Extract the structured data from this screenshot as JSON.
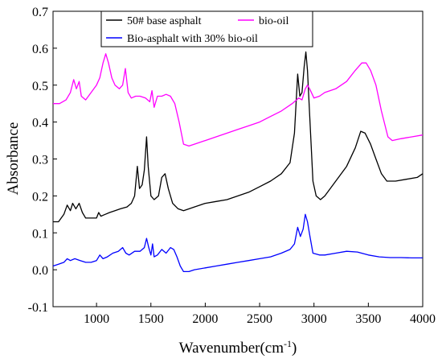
{
  "chart_data": {
    "type": "line",
    "xlabel": "Wavenumber(cm",
    "xlabel_sup": "-1",
    "xlabel_end": ")",
    "ylabel": "Absorbance",
    "xlim": [
      600,
      4000
    ],
    "ylim": [
      -0.1,
      0.7
    ],
    "xticks": [
      1000,
      1500,
      2000,
      2500,
      3000,
      3500,
      4000
    ],
    "xtick_labels": [
      "1000",
      "1500",
      "2000",
      "2500",
      "3000",
      "3500",
      "4000"
    ],
    "yticks": [
      -0.1,
      0.0,
      0.1,
      0.2,
      0.3,
      0.4,
      0.5,
      0.6,
      0.7
    ],
    "ytick_labels": [
      "-0.1",
      "0.0",
      "0.1",
      "0.2",
      "0.3",
      "0.4",
      "0.5",
      "0.6",
      "0.7"
    ],
    "grid": false,
    "legend_position": "top-center",
    "series": [
      {
        "name": "50# base asphalt",
        "color": "#000000",
        "points": [
          [
            600,
            0.13
          ],
          [
            650,
            0.13
          ],
          [
            700,
            0.15
          ],
          [
            730,
            0.175
          ],
          [
            760,
            0.16
          ],
          [
            780,
            0.18
          ],
          [
            810,
            0.165
          ],
          [
            840,
            0.18
          ],
          [
            870,
            0.155
          ],
          [
            900,
            0.14
          ],
          [
            950,
            0.14
          ],
          [
            1000,
            0.14
          ],
          [
            1020,
            0.155
          ],
          [
            1040,
            0.145
          ],
          [
            1080,
            0.15
          ],
          [
            1120,
            0.155
          ],
          [
            1170,
            0.16
          ],
          [
            1220,
            0.165
          ],
          [
            1280,
            0.17
          ],
          [
            1320,
            0.18
          ],
          [
            1350,
            0.2
          ],
          [
            1375,
            0.28
          ],
          [
            1395,
            0.22
          ],
          [
            1420,
            0.23
          ],
          [
            1440,
            0.27
          ],
          [
            1460,
            0.36
          ],
          [
            1475,
            0.28
          ],
          [
            1500,
            0.2
          ],
          [
            1530,
            0.19
          ],
          [
            1570,
            0.2
          ],
          [
            1600,
            0.25
          ],
          [
            1630,
            0.26
          ],
          [
            1660,
            0.22
          ],
          [
            1700,
            0.18
          ],
          [
            1750,
            0.165
          ],
          [
            1800,
            0.16
          ],
          [
            1900,
            0.17
          ],
          [
            2000,
            0.18
          ],
          [
            2100,
            0.185
          ],
          [
            2200,
            0.19
          ],
          [
            2300,
            0.2
          ],
          [
            2400,
            0.21
          ],
          [
            2500,
            0.225
          ],
          [
            2600,
            0.24
          ],
          [
            2700,
            0.26
          ],
          [
            2780,
            0.29
          ],
          [
            2820,
            0.37
          ],
          [
            2850,
            0.53
          ],
          [
            2870,
            0.47
          ],
          [
            2890,
            0.48
          ],
          [
            2910,
            0.55
          ],
          [
            2925,
            0.59
          ],
          [
            2940,
            0.54
          ],
          [
            2960,
            0.42
          ],
          [
            2990,
            0.24
          ],
          [
            3020,
            0.2
          ],
          [
            3060,
            0.19
          ],
          [
            3100,
            0.2
          ],
          [
            3200,
            0.24
          ],
          [
            3300,
            0.28
          ],
          [
            3380,
            0.33
          ],
          [
            3430,
            0.375
          ],
          [
            3470,
            0.37
          ],
          [
            3520,
            0.34
          ],
          [
            3570,
            0.3
          ],
          [
            3620,
            0.26
          ],
          [
            3670,
            0.24
          ],
          [
            3750,
            0.24
          ],
          [
            3850,
            0.245
          ],
          [
            3950,
            0.25
          ],
          [
            4000,
            0.26
          ]
        ]
      },
      {
        "name": "bio-oil",
        "color": "#ff00ff",
        "points": [
          [
            600,
            0.45
          ],
          [
            660,
            0.45
          ],
          [
            720,
            0.46
          ],
          [
            760,
            0.48
          ],
          [
            790,
            0.515
          ],
          [
            815,
            0.49
          ],
          [
            840,
            0.51
          ],
          [
            860,
            0.47
          ],
          [
            900,
            0.46
          ],
          [
            950,
            0.48
          ],
          [
            1000,
            0.5
          ],
          [
            1030,
            0.52
          ],
          [
            1060,
            0.56
          ],
          [
            1085,
            0.585
          ],
          [
            1110,
            0.56
          ],
          [
            1140,
            0.52
          ],
          [
            1170,
            0.5
          ],
          [
            1210,
            0.49
          ],
          [
            1240,
            0.5
          ],
          [
            1265,
            0.545
          ],
          [
            1290,
            0.48
          ],
          [
            1320,
            0.465
          ],
          [
            1360,
            0.47
          ],
          [
            1400,
            0.47
          ],
          [
            1450,
            0.465
          ],
          [
            1490,
            0.455
          ],
          [
            1510,
            0.485
          ],
          [
            1530,
            0.44
          ],
          [
            1560,
            0.47
          ],
          [
            1600,
            0.47
          ],
          [
            1640,
            0.475
          ],
          [
            1680,
            0.47
          ],
          [
            1720,
            0.45
          ],
          [
            1760,
            0.4
          ],
          [
            1800,
            0.34
          ],
          [
            1850,
            0.335
          ],
          [
            1900,
            0.34
          ],
          [
            2000,
            0.35
          ],
          [
            2100,
            0.36
          ],
          [
            2200,
            0.37
          ],
          [
            2300,
            0.38
          ],
          [
            2400,
            0.39
          ],
          [
            2500,
            0.4
          ],
          [
            2600,
            0.415
          ],
          [
            2700,
            0.43
          ],
          [
            2800,
            0.45
          ],
          [
            2860,
            0.465
          ],
          [
            2890,
            0.46
          ],
          [
            2920,
            0.49
          ],
          [
            2940,
            0.5
          ],
          [
            2960,
            0.49
          ],
          [
            3000,
            0.465
          ],
          [
            3050,
            0.47
          ],
          [
            3100,
            0.48
          ],
          [
            3200,
            0.49
          ],
          [
            3300,
            0.51
          ],
          [
            3380,
            0.54
          ],
          [
            3440,
            0.56
          ],
          [
            3480,
            0.56
          ],
          [
            3520,
            0.54
          ],
          [
            3570,
            0.5
          ],
          [
            3620,
            0.43
          ],
          [
            3680,
            0.36
          ],
          [
            3720,
            0.35
          ],
          [
            3800,
            0.355
          ],
          [
            3900,
            0.36
          ],
          [
            4000,
            0.365
          ]
        ]
      },
      {
        "name": "Bio-asphalt with 30% bio-oil",
        "color": "#0000ff",
        "points": [
          [
            600,
            0.01
          ],
          [
            650,
            0.015
          ],
          [
            700,
            0.02
          ],
          [
            730,
            0.03
          ],
          [
            760,
            0.025
          ],
          [
            800,
            0.03
          ],
          [
            850,
            0.025
          ],
          [
            900,
            0.02
          ],
          [
            950,
            0.02
          ],
          [
            1000,
            0.025
          ],
          [
            1030,
            0.04
          ],
          [
            1060,
            0.03
          ],
          [
            1100,
            0.035
          ],
          [
            1150,
            0.045
          ],
          [
            1200,
            0.05
          ],
          [
            1240,
            0.06
          ],
          [
            1270,
            0.045
          ],
          [
            1300,
            0.04
          ],
          [
            1350,
            0.05
          ],
          [
            1400,
            0.05
          ],
          [
            1440,
            0.06
          ],
          [
            1460,
            0.085
          ],
          [
            1480,
            0.06
          ],
          [
            1500,
            0.04
          ],
          [
            1515,
            0.07
          ],
          [
            1530,
            0.035
          ],
          [
            1560,
            0.04
          ],
          [
            1600,
            0.055
          ],
          [
            1640,
            0.045
          ],
          [
            1680,
            0.06
          ],
          [
            1710,
            0.055
          ],
          [
            1740,
            0.035
          ],
          [
            1770,
            0.01
          ],
          [
            1800,
            -0.005
          ],
          [
            1850,
            -0.005
          ],
          [
            1900,
            0.0
          ],
          [
            2000,
            0.005
          ],
          [
            2100,
            0.01
          ],
          [
            2200,
            0.015
          ],
          [
            2300,
            0.02
          ],
          [
            2400,
            0.025
          ],
          [
            2500,
            0.03
          ],
          [
            2600,
            0.035
          ],
          [
            2700,
            0.045
          ],
          [
            2780,
            0.055
          ],
          [
            2820,
            0.07
          ],
          [
            2850,
            0.115
          ],
          [
            2875,
            0.09
          ],
          [
            2900,
            0.11
          ],
          [
            2920,
            0.15
          ],
          [
            2940,
            0.13
          ],
          [
            2960,
            0.095
          ],
          [
            2990,
            0.045
          ],
          [
            3050,
            0.04
          ],
          [
            3100,
            0.04
          ],
          [
            3200,
            0.045
          ],
          [
            3300,
            0.05
          ],
          [
            3400,
            0.048
          ],
          [
            3500,
            0.04
          ],
          [
            3600,
            0.035
          ],
          [
            3700,
            0.033
          ],
          [
            3800,
            0.033
          ],
          [
            3900,
            0.032
          ],
          [
            4000,
            0.032
          ]
        ]
      }
    ]
  }
}
